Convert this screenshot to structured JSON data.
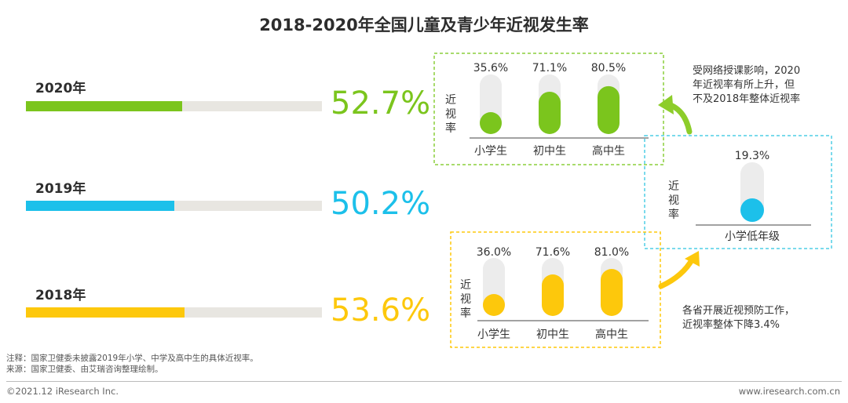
{
  "title": "2018-2020年全国儿童及青少年近视发生率",
  "colors": {
    "y2020": "#7bc51d",
    "y2019": "#1cc0ea",
    "y2018": "#fdc80c",
    "track": "#e8e6e1",
    "capsule_track": "#ececec"
  },
  "years": [
    {
      "label": "2020年",
      "value_label": "52.7%"
    },
    {
      "label": "2019年",
      "value_label": "50.2%"
    },
    {
      "label": "2018年",
      "value_label": "53.6%"
    }
  ],
  "ylabel_chars": [
    "近",
    "视",
    "率"
  ],
  "annotations": {
    "top_lines": [
      "受网络授课影响，2020",
      "年近视率有所上升，但",
      "不及2018年整体近视率"
    ],
    "bottom_lines": [
      "各省开展近视预防工作，",
      "近视率整体下降3.4%"
    ]
  },
  "notes": [
    "注释：国家卫健委未披露2019年小学、中学及高中生的具体近视率。",
    "来源：国家卫健委、由艾瑞咨询整理绘制。"
  ],
  "footer": {
    "left": "©2021.12 iResearch Inc.",
    "right": "www.iresearch.com.cn"
  },
  "chart_data": [
    {
      "type": "bar",
      "orientation": "horizontal",
      "title": "2018-2020年全国儿童及青少年近视发生率",
      "categories": [
        "2020年",
        "2019年",
        "2018年"
      ],
      "values": [
        52.7,
        50.2,
        53.6
      ],
      "xlim": [
        0,
        100
      ],
      "unit": "%"
    },
    {
      "type": "bar",
      "year": "2020年",
      "ylabel": "近视率",
      "categories": [
        "小学生",
        "初中生",
        "高中生"
      ],
      "values": [
        35.6,
        71.1,
        80.5
      ],
      "value_labels": [
        "35.6%",
        "71.1%",
        "80.5%"
      ],
      "ylim": [
        0,
        100
      ]
    },
    {
      "type": "bar",
      "year": "2019年",
      "ylabel": "近视率",
      "categories": [
        "小学低年级"
      ],
      "values": [
        19.3
      ],
      "value_labels": [
        "19.3%"
      ],
      "ylim": [
        0,
        100
      ]
    },
    {
      "type": "bar",
      "year": "2018年",
      "ylabel": "近视率",
      "categories": [
        "小学生",
        "初中生",
        "高中生"
      ],
      "values": [
        36.0,
        71.6,
        81.0
      ],
      "value_labels": [
        "36.0%",
        "71.6%",
        "81.0%"
      ],
      "ylim": [
        0,
        100
      ]
    }
  ]
}
